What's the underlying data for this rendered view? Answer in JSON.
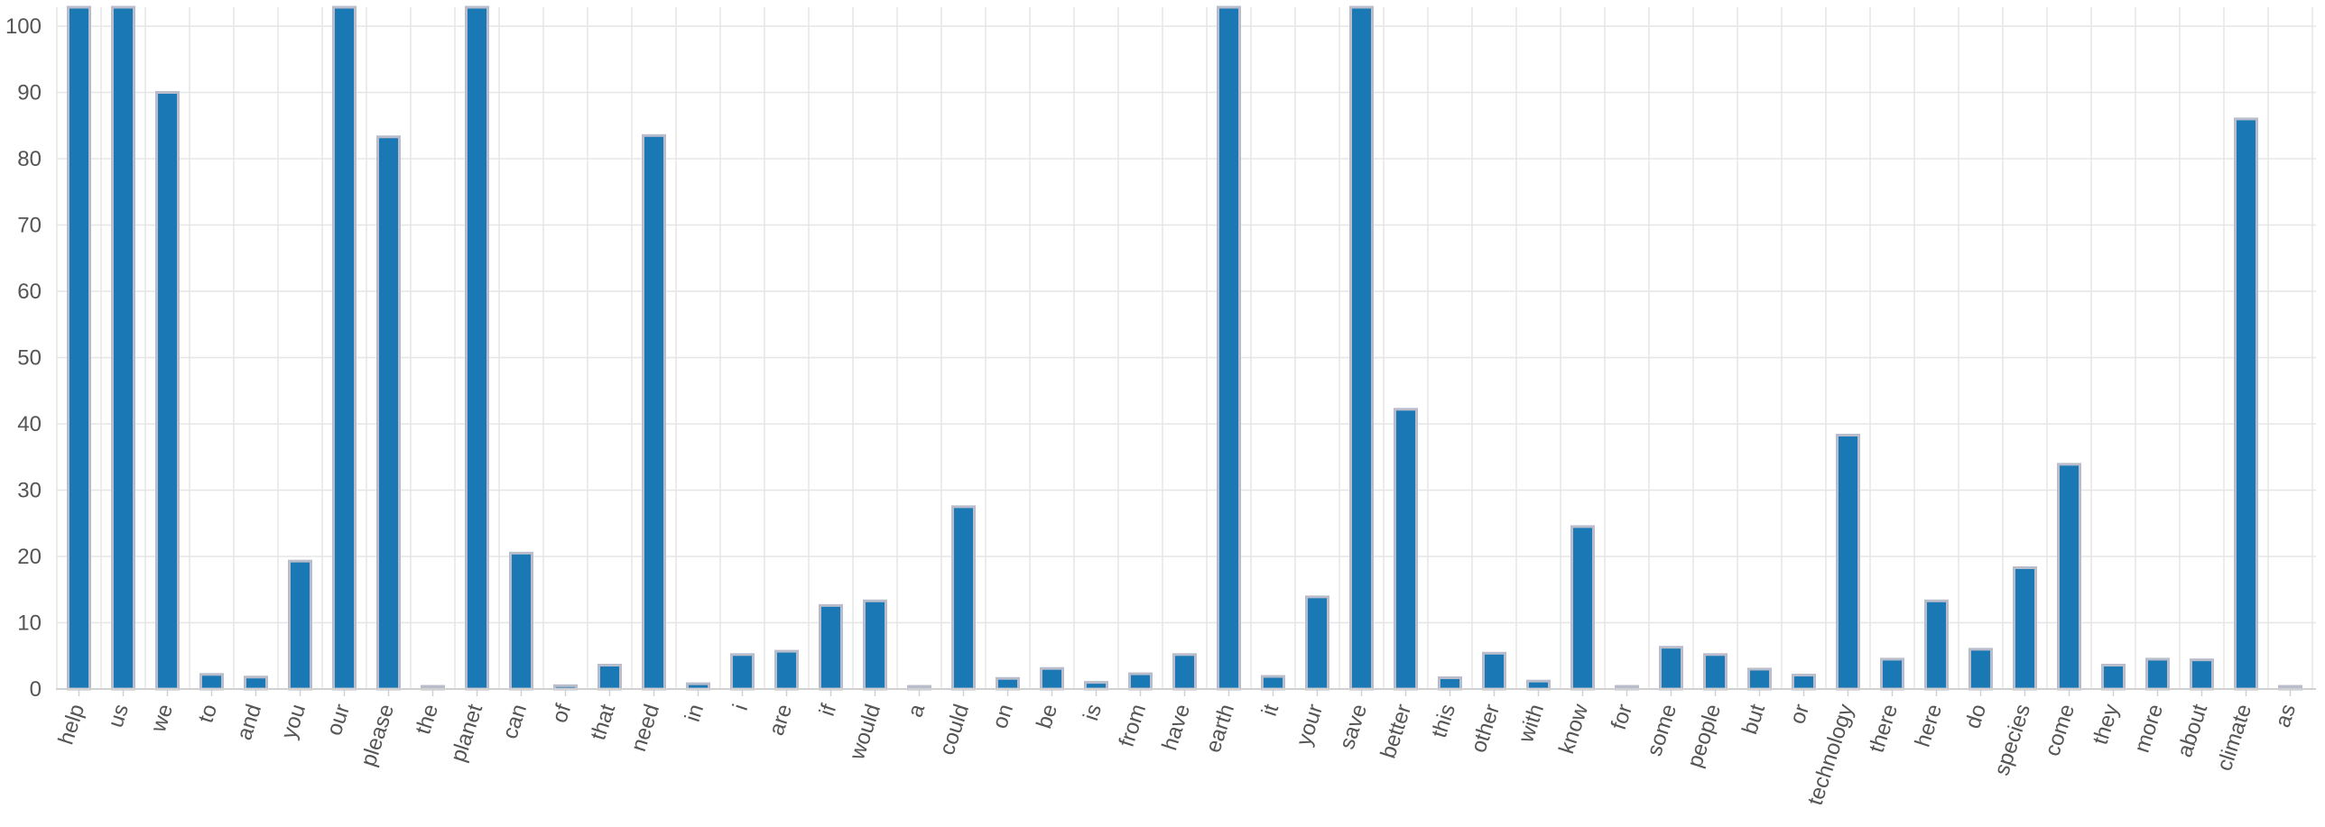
{
  "chart_data": {
    "type": "bar",
    "title": "",
    "xlabel": "",
    "ylabel": "",
    "ylim": [
      0,
      103
    ],
    "yticks": [
      0,
      10,
      20,
      30,
      40,
      50,
      60,
      70,
      80,
      90,
      100
    ],
    "grid": true,
    "legend": "none",
    "colors": {
      "bar": "#1a78b4",
      "bar_edge": "#b8bccb",
      "grid": "#e6e6e6",
      "axis": "#d0d0d0",
      "tick_text": "#555555"
    },
    "categories": [
      "help",
      "us",
      "we",
      "to",
      "and",
      "you",
      "our",
      "please",
      "the",
      "planet",
      "can",
      "of",
      "that",
      "need",
      "in",
      "i",
      "are",
      "if",
      "would",
      "a",
      "could",
      "on",
      "be",
      "is",
      "from",
      "have",
      "earth",
      "it",
      "your",
      "save",
      "better",
      "this",
      "other",
      "with",
      "know",
      "for",
      "some",
      "people",
      "but",
      "or",
      "technology",
      "there",
      "here",
      "do",
      "species",
      "come",
      "they",
      "more",
      "about",
      "climate",
      "as"
    ],
    "values": [
      103,
      103,
      90,
      2.2,
      1.8,
      19.3,
      103,
      83.3,
      0.4,
      103,
      20.5,
      0.5,
      3.6,
      83.5,
      0.8,
      5.2,
      5.7,
      12.6,
      13.3,
      0.4,
      27.5,
      1.6,
      3.1,
      1,
      2.3,
      5.2,
      103,
      1.9,
      13.9,
      103,
      42.2,
      1.7,
      5.4,
      1.2,
      24.5,
      0.4,
      6.3,
      5.2,
      3,
      2.1,
      38.3,
      4.5,
      13.3,
      6,
      18.3,
      33.9,
      3.6,
      4.5,
      4.4,
      86,
      0.4
    ]
  }
}
